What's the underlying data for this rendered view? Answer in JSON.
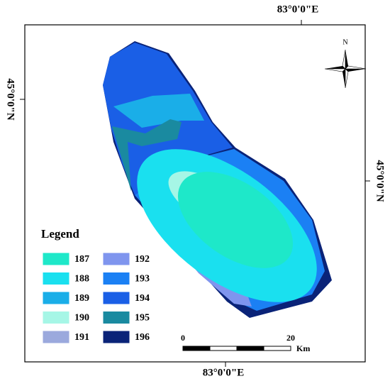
{
  "map": {
    "coordinate_labels": {
      "top": "83°0'0\"E",
      "bottom": "83°0'0\"E",
      "left": "45°0'0\"N",
      "right": "45°0'0\"N"
    },
    "north_arrow": "N",
    "legend": {
      "title": "Legend",
      "items": [
        {
          "label": "187",
          "color": "#1ee8c9"
        },
        {
          "label": "188",
          "color": "#1ae0ef"
        },
        {
          "label": "189",
          "color": "#1aaee8"
        },
        {
          "label": "190",
          "color": "#a6f6e6"
        },
        {
          "label": "191",
          "color": "#9ba9dd"
        },
        {
          "label": "192",
          "color": "#7f95ee"
        },
        {
          "label": "193",
          "color": "#1b80f4"
        },
        {
          "label": "194",
          "color": "#1a5fe6"
        },
        {
          "label": "195",
          "color": "#1a8aa0"
        },
        {
          "label": "196",
          "color": "#0a2378"
        }
      ]
    },
    "scale_bar": {
      "labels": [
        "0",
        "20"
      ],
      "unit": "Km"
    }
  }
}
